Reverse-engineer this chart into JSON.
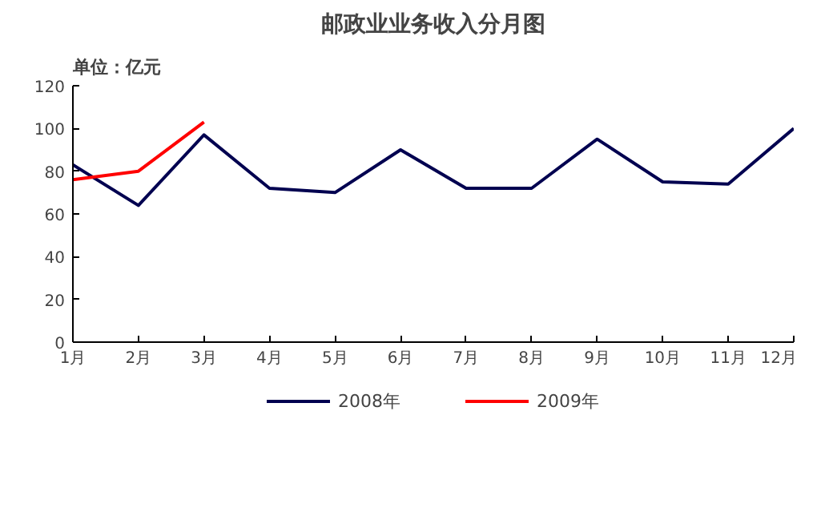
{
  "chart_data": {
    "type": "line",
    "title": "邮政业业务收入分月图",
    "annotations": [
      "单位：亿元"
    ],
    "categories": [
      "1月",
      "2月",
      "3月",
      "4月",
      "5月",
      "6月",
      "7月",
      "8月",
      "9月",
      "10月",
      "11月",
      "12月"
    ],
    "series": [
      {
        "name": "2008年",
        "color": "#000050",
        "values": [
          83,
          64,
          97,
          72,
          70,
          90,
          72,
          72,
          95,
          75,
          74,
          100
        ]
      },
      {
        "name": "2009年",
        "color": "#ff0000",
        "values": [
          76,
          80,
          103,
          null,
          null,
          null,
          null,
          null,
          null,
          null,
          null,
          null
        ]
      }
    ],
    "ylim": [
      0,
      120
    ],
    "yticks": [
      0,
      20,
      40,
      60,
      80,
      100,
      120
    ],
    "grid": false,
    "legend": "bottom",
    "marker": "none",
    "line_style": "solid"
  }
}
